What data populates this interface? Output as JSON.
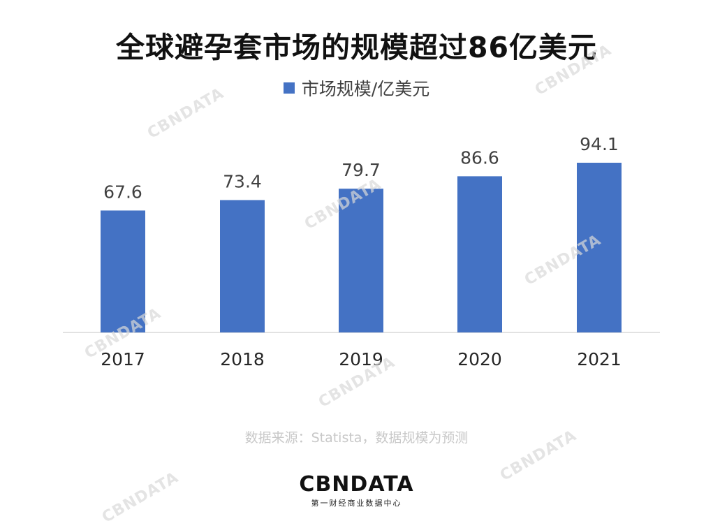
{
  "title": "全球避孕套市场的规模超过86亿美元",
  "legend": {
    "label": "市场规模/亿美元"
  },
  "source": "数据来源：Statista，数据规模为预测",
  "logo": {
    "main": "CBNDATA",
    "sub": "第一财经商业数据中心"
  },
  "watermark": "CBNDATA",
  "colors": {
    "bar": "#4472c4",
    "axis": "#d9d9d9",
    "text": "#404040"
  },
  "chart_data": {
    "type": "bar",
    "title": "全球避孕套市场的规模超过86亿美元",
    "categories": [
      "2017",
      "2018",
      "2019",
      "2020",
      "2021"
    ],
    "series": [
      {
        "name": "市场规模/亿美元",
        "values": [
          67.6,
          73.4,
          79.7,
          86.6,
          94.1
        ]
      }
    ],
    "ylim": [
      0,
      100
    ],
    "grid": false,
    "legend_position": "top-center",
    "data_labels": true
  }
}
